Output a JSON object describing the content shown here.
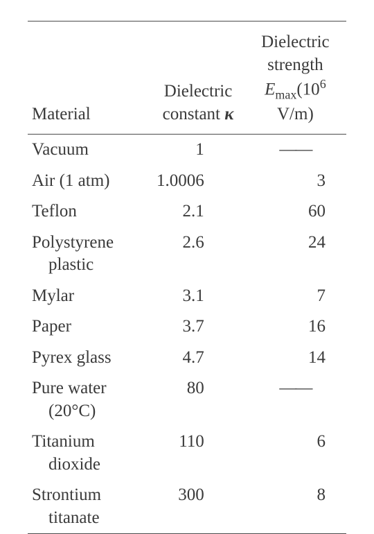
{
  "table": {
    "type": "table",
    "background_color": "#ffffff",
    "text_color": "#3a3a3a",
    "rule_color": "#4a4a4a",
    "font_family": "Times New Roman",
    "header_fontsize": 25,
    "body_fontsize": 25,
    "columns": [
      {
        "key": "material",
        "label": "Material",
        "width_pct": 39,
        "align": "left"
      },
      {
        "key": "kappa",
        "label_line1": "Dielectric",
        "label_line2_prefix": "constant ",
        "label_line2_symbol": "κ",
        "width_pct": 29,
        "align": "right"
      },
      {
        "key": "emax",
        "label_line1": "Dielectric",
        "label_line2": "strength",
        "label_line3_E": "E",
        "label_line3_sub": "max",
        "label_line3_open": "(10",
        "label_line3_sup": "6",
        "label_line3_unit": " V/m)",
        "width_pct": 32,
        "align": "right"
      }
    ],
    "rows": [
      {
        "material": "Vacuum",
        "material_sub": "",
        "kappa": "1",
        "emax": "—",
        "emax_is_dash": true
      },
      {
        "material": "Air (1 atm)",
        "material_sub": "",
        "kappa": "1.0006",
        "emax": "3"
      },
      {
        "material": "Teflon",
        "material_sub": "",
        "kappa": "2.1",
        "emax": "60"
      },
      {
        "material": "Polystyrene",
        "material_sub": "plastic",
        "kappa": "2.6",
        "emax": "24"
      },
      {
        "material": "Mylar",
        "material_sub": "",
        "kappa": "3.1",
        "emax": "7"
      },
      {
        "material": "Paper",
        "material_sub": "",
        "kappa": "3.7",
        "emax": "16"
      },
      {
        "material": "Pyrex glass",
        "material_sub": "",
        "kappa": "4.7",
        "emax": "14"
      },
      {
        "material": "Pure water",
        "material_sub": "(20°C)",
        "kappa": "80",
        "emax": "—",
        "emax_is_dash": true
      },
      {
        "material": "Titanium",
        "material_sub": "dioxide",
        "kappa": "110",
        "emax": "6"
      },
      {
        "material": "Strontium",
        "material_sub": "titanate",
        "kappa": "300",
        "emax": "8"
      }
    ]
  }
}
